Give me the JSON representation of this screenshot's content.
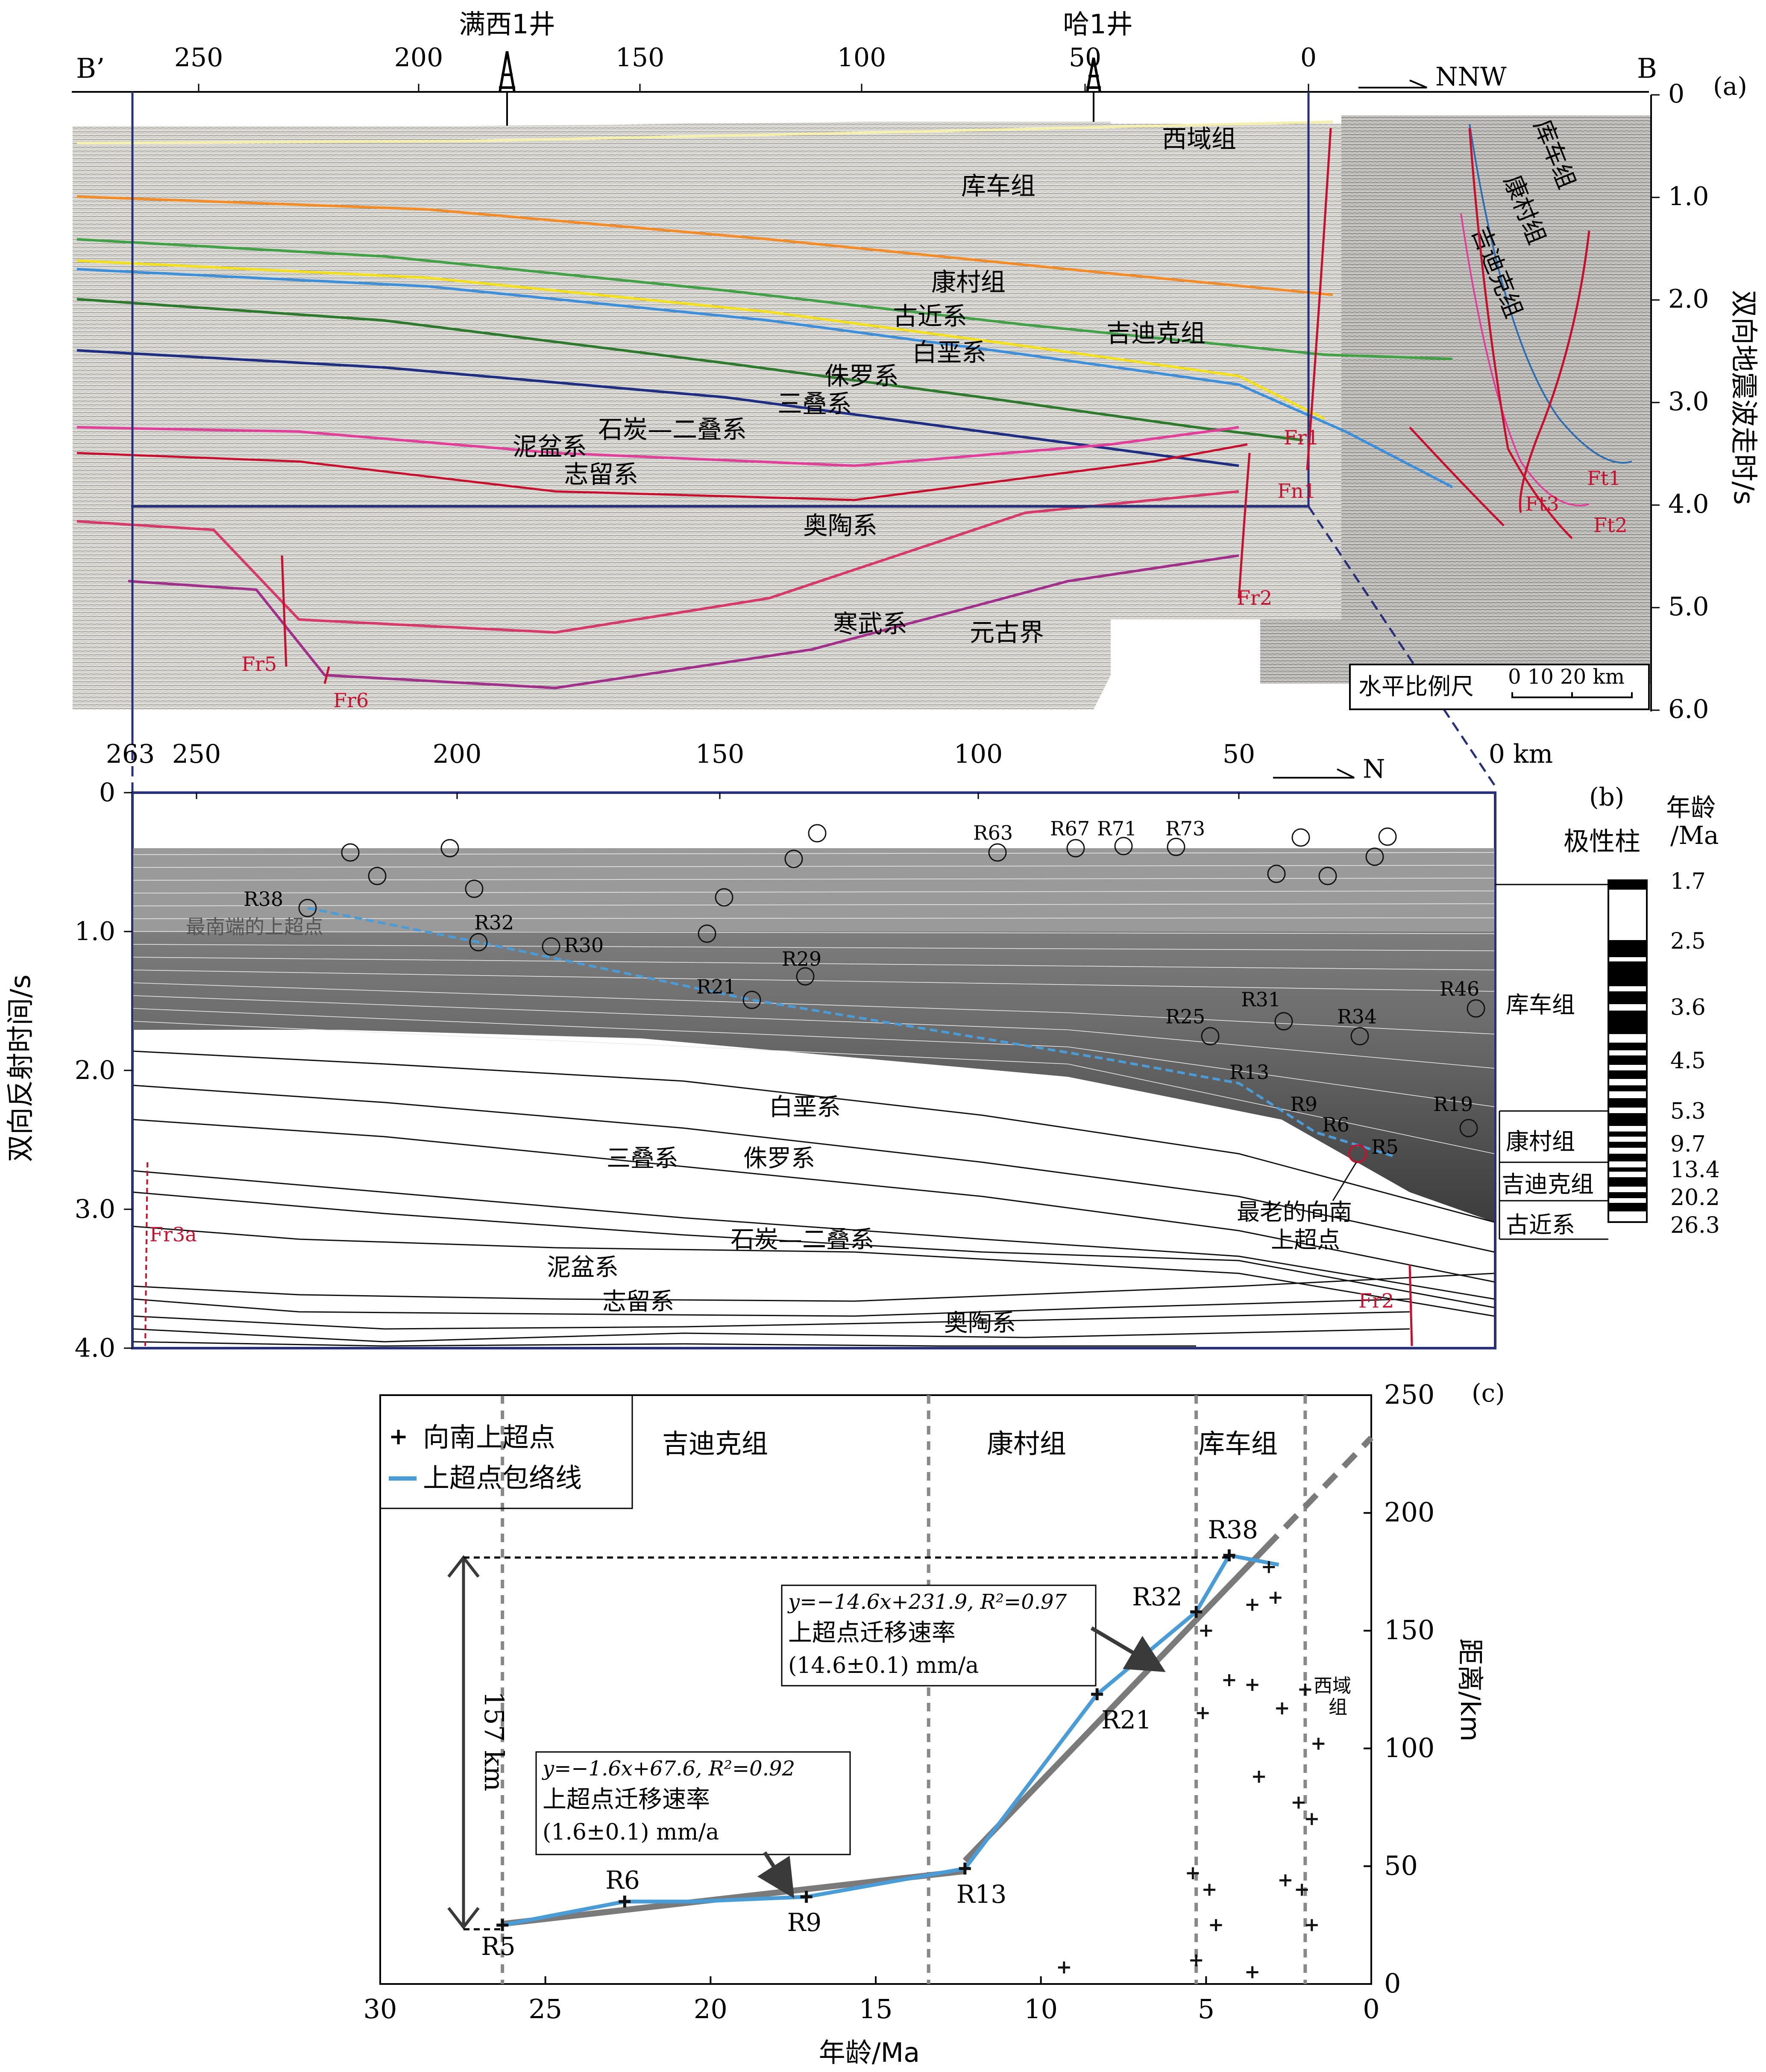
{
  "panel_a": {
    "tag": "(a)",
    "left_end": "B’",
    "right_end": "B",
    "wells": [
      "满西1井",
      "哈1井"
    ],
    "direction": "NNW",
    "top_ticks": [
      "250",
      "200",
      "150",
      "100",
      "50",
      "0"
    ],
    "y_ticks": [
      "0",
      "1.0",
      "2.0",
      "3.0",
      "4.0",
      "5.0",
      "6.0"
    ],
    "y_label": "双向地震波走时/s",
    "scale_label": "水平比例尺",
    "scale_ticks": "0  10 20 km",
    "formations": [
      "西域组",
      "库车组",
      "康村组",
      "古近系",
      "吉迪克组",
      "白垩系",
      "侏罗系",
      "三叠系",
      "石炭—二叠系",
      "泥盆系",
      "志留系",
      "奥陶系",
      "寒武系",
      "元古界"
    ],
    "inset_formations": [
      "库车组",
      "康村组",
      "吉迪克组"
    ],
    "faults": [
      "Fr1",
      "Fn1",
      "Ft1",
      "Ft2",
      "Ft3",
      "Fr2",
      "Fr5",
      "Fr6"
    ]
  },
  "panel_b": {
    "tag": "(b)",
    "top_ticks": [
      "263",
      "250",
      "200",
      "150",
      "100",
      "50",
      "0 km"
    ],
    "direction": "N",
    "y_ticks": [
      "0",
      "1.0",
      "2.0",
      "3.0",
      "4.0"
    ],
    "y_label": "双向反射时间/s",
    "onlap_labels": [
      "R38",
      "R32",
      "R30",
      "R29",
      "R21",
      "R63",
      "R67",
      "R71",
      "R73",
      "R25",
      "R31",
      "R34",
      "R46",
      "R13",
      "R9",
      "R6",
      "R5",
      "R19"
    ],
    "southmost_label": "最南端的上超点",
    "oldest_label_1": "最老的向南",
    "oldest_label_2": "上超点",
    "formations": [
      "白垩系",
      "三叠系",
      "侏罗系",
      "石炭—二叠系",
      "泥盆系",
      "志留系",
      "奥陶系"
    ],
    "faults": [
      "Fr3a",
      "Fr2"
    ],
    "polarity_title": "极性柱",
    "age_title_1": "年龄",
    "age_title_2": "/Ma",
    "ages": [
      "1.7",
      "2.5",
      "3.6",
      "4.5",
      "5.3",
      "9.7",
      "13.4",
      "20.2",
      "26.3"
    ],
    "strat_units": [
      "库车组",
      "康村组",
      "吉迪克组",
      "古近系"
    ]
  },
  "panel_c": {
    "tag": "(c)",
    "legend": [
      "向南上超点",
      "上超点包络线"
    ],
    "zones": [
      "吉迪克组",
      "康村组",
      "库车组",
      "西域组"
    ],
    "eq1": "y=−14.6x+231.9, R²=0.97",
    "rate1_title": "上超点迁移速率",
    "rate1": "(14.6±0.1) mm/a",
    "eq2": "y=−1.6x+67.6, R²=0.92",
    "rate2_title": "上超点迁移速率",
    "rate2": "(1.6±0.1) mm/a",
    "span_label": "157 km"
  },
  "chart_data": {
    "type": "scatter",
    "xlabel": "年龄/Ma",
    "ylabel": "距离/km",
    "xlim": [
      30,
      0
    ],
    "ylim": [
      0,
      250
    ],
    "x_ticks": [
      30,
      25,
      20,
      15,
      10,
      5,
      0
    ],
    "y_ticks": [
      0,
      50,
      100,
      150,
      200,
      250
    ],
    "zone_boundaries": [
      26.3,
      13.4,
      5.3,
      2.0
    ],
    "series": [
      {
        "name": "向南上超点",
        "points": [
          {
            "label": "R5",
            "x": 26.3,
            "y": 25
          },
          {
            "label": "R6",
            "x": 22.6,
            "y": 35
          },
          {
            "label": "R9",
            "x": 17.1,
            "y": 37
          },
          {
            "label": "R13",
            "x": 12.3,
            "y": 49
          },
          {
            "label": "R21",
            "x": 8.3,
            "y": 123
          },
          {
            "label": "R32",
            "x": 5.3,
            "y": 158
          },
          {
            "label": "R38",
            "x": 4.3,
            "y": 182
          },
          {
            "label": "",
            "x": 3.1,
            "y": 177
          },
          {
            "label": "",
            "x": 5.0,
            "y": 150
          },
          {
            "label": "",
            "x": 3.6,
            "y": 161
          },
          {
            "label": "",
            "x": 2.9,
            "y": 164
          },
          {
            "label": "",
            "x": 4.3,
            "y": 129
          },
          {
            "label": "",
            "x": 3.6,
            "y": 127
          },
          {
            "label": "",
            "x": 2.0,
            "y": 125
          },
          {
            "label": "",
            "x": 5.1,
            "y": 115
          },
          {
            "label": "",
            "x": 2.7,
            "y": 117
          },
          {
            "label": "",
            "x": 1.6,
            "y": 102
          },
          {
            "label": "",
            "x": 3.4,
            "y": 88
          },
          {
            "label": "",
            "x": 2.2,
            "y": 77
          },
          {
            "label": "",
            "x": 1.8,
            "y": 70
          },
          {
            "label": "",
            "x": 5.4,
            "y": 47
          },
          {
            "label": "",
            "x": 4.9,
            "y": 40
          },
          {
            "label": "",
            "x": 2.6,
            "y": 44
          },
          {
            "label": "",
            "x": 2.1,
            "y": 40
          },
          {
            "label": "",
            "x": 4.7,
            "y": 25
          },
          {
            "label": "",
            "x": 1.8,
            "y": 25
          },
          {
            "label": "",
            "x": 5.3,
            "y": 10
          },
          {
            "label": "",
            "x": 3.6,
            "y": 5
          },
          {
            "label": "",
            "x": 9.3,
            "y": 7
          }
        ]
      },
      {
        "name": "上超点包络线",
        "x": [
          26.3,
          22.6,
          20.5,
          17.1,
          12.3,
          8.3,
          5.3,
          4.3,
          2.8
        ],
        "y": [
          25,
          35,
          35,
          37,
          49,
          123,
          158,
          182,
          178
        ]
      }
    ],
    "fits": [
      {
        "slope": -14.6,
        "intercept": 231.9,
        "x_range": [
          12.3,
          0
        ]
      },
      {
        "slope": -1.6,
        "intercept": 67.6,
        "x_range": [
          26.3,
          12.3
        ]
      }
    ]
  },
  "colors": {
    "frame": "#28307a",
    "fault": "#c8102e",
    "envelope": "#4a9cd6",
    "fit": "#7a7a7a",
    "zone_line": "#888888"
  }
}
